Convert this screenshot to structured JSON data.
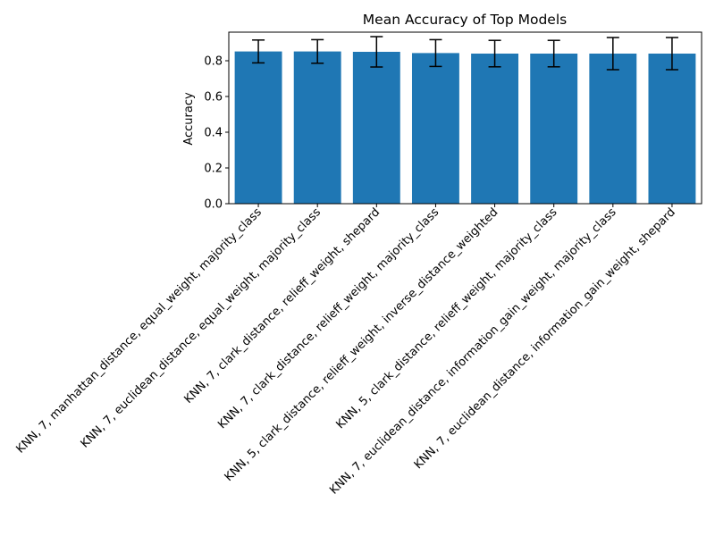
{
  "chart_data": {
    "type": "bar",
    "title": "Mean Accuracy of Top Models",
    "xlabel": "",
    "ylabel": "Accuracy",
    "ylim": [
      0.0,
      0.96
    ],
    "yticks": [
      "0.0",
      "0.2",
      "0.4",
      "0.6",
      "0.8"
    ],
    "grid": false,
    "legend": "none",
    "bar_color": "#1f77b4",
    "categories": [
      "KNN, 7, manhattan_distance, equal_weight, majority_class",
      "KNN, 7, euclidean_distance, equal_weight, majority_class",
      "KNN, 7, clark_distance, relieff_weight, shepard",
      "KNN, 7, clark_distance, relieff_weight, majority_class",
      "KNN, 5, clark_distance, relieff_weight, inverse_distance_weighted",
      "KNN, 5, clark_distance, relieff_weight, majority_class",
      "KNN, 7, euclidean_distance, information_gain_weight, majority_class",
      "KNN, 7, euclidean_distance, information_gain_weight, shepard"
    ],
    "values": [
      0.852,
      0.852,
      0.85,
      0.843,
      0.84,
      0.84,
      0.84,
      0.84
    ],
    "errors": [
      0.064,
      0.066,
      0.085,
      0.075,
      0.074,
      0.074,
      0.09,
      0.09
    ]
  }
}
